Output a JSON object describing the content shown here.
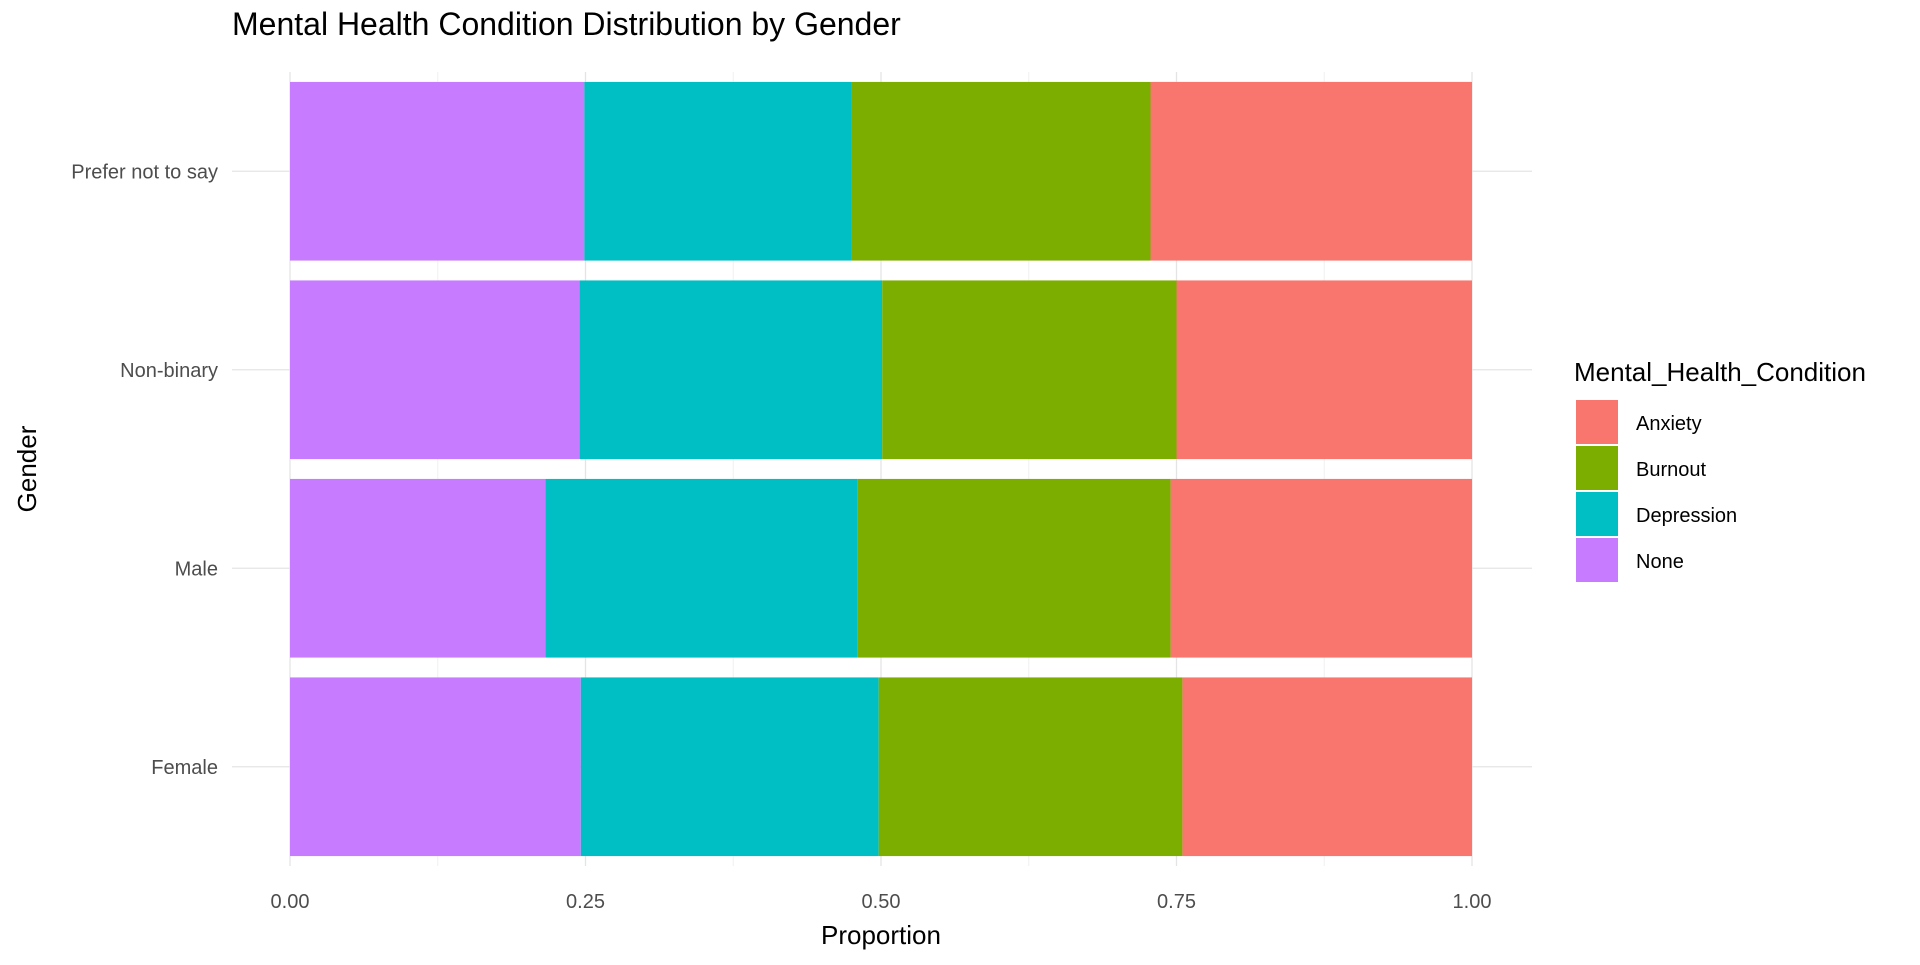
{
  "chart_data": {
    "type": "bar",
    "orientation": "horizontal",
    "stacked": true,
    "title": "Mental Health Condition Distribution by Gender",
    "xlabel": "Proportion",
    "ylabel": "Gender",
    "xlim": [
      0,
      1
    ],
    "x_ticks": [
      "0.00",
      "0.25",
      "0.50",
      "0.75",
      "1.00"
    ],
    "categories": [
      "Female",
      "Male",
      "Non-binary",
      "Prefer not to say"
    ],
    "stack_order": [
      "None",
      "Depression",
      "Burnout",
      "Anxiety"
    ],
    "series": [
      {
        "name": "Anxiety",
        "color": "#F8766D",
        "values": [
          0.245,
          0.255,
          0.25,
          0.272
        ]
      },
      {
        "name": "Burnout",
        "color": "#7CAE00",
        "values": [
          0.257,
          0.265,
          0.249,
          0.253
        ]
      },
      {
        "name": "Depression",
        "color": "#00BFC4",
        "values": [
          0.252,
          0.264,
          0.256,
          0.226
        ]
      },
      {
        "name": "None",
        "color": "#C77CFF",
        "values": [
          0.246,
          0.216,
          0.245,
          0.249
        ]
      }
    ],
    "legend": {
      "title": "Mental_Health_Condition",
      "position": "right",
      "entries": [
        "Anxiety",
        "Burnout",
        "Depression",
        "None"
      ]
    },
    "grid": true
  }
}
